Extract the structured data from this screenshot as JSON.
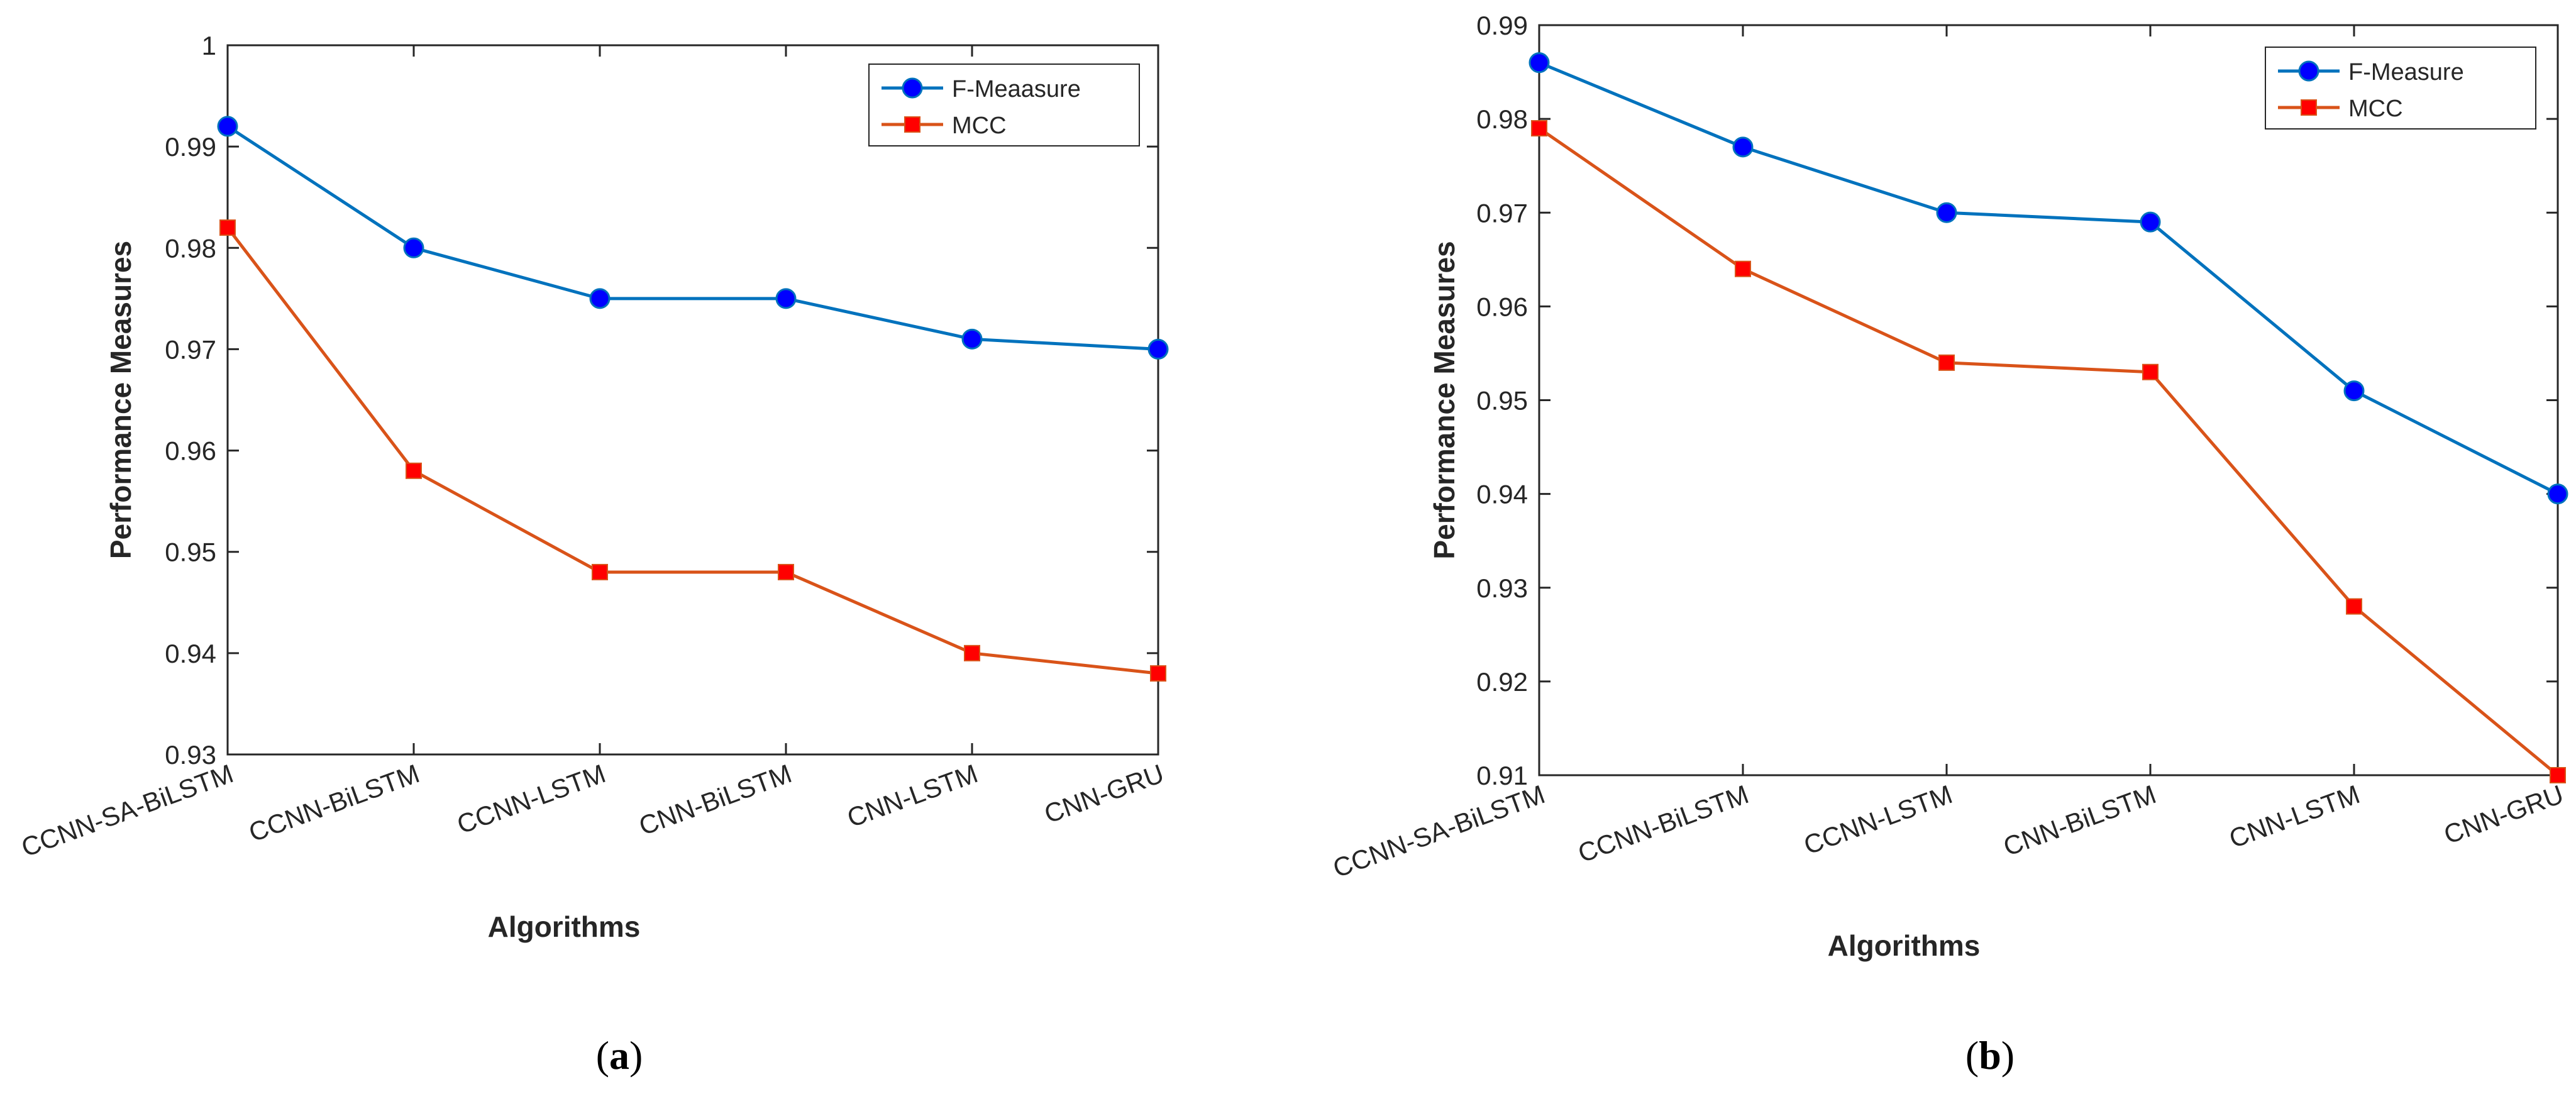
{
  "chart_data": [
    {
      "type": "line",
      "panel_label": "a",
      "title": "",
      "xlabel": "Algorithms",
      "ylabel": "Performance Measures",
      "categories": [
        "CCNN-SA-BiLSTM",
        "CCNN-BiLSTM",
        "CCNN-LSTM",
        "CNN-BiLSTM",
        "CNN-LSTM",
        "CNN-GRU"
      ],
      "ylim": [
        0.93,
        1.0
      ],
      "yticks": [
        "0.93",
        "0.94",
        "0.95",
        "0.96",
        "0.97",
        "0.98",
        "0.99",
        "1"
      ],
      "grid": false,
      "legend_position": "top-right",
      "series": [
        {
          "name": "F-Meaasure",
          "color": "#0072BD",
          "marker": "circle",
          "marker_color": "#0000FF",
          "values": [
            0.992,
            0.98,
            0.975,
            0.975,
            0.971,
            0.97
          ]
        },
        {
          "name": "MCC",
          "color": "#D95319",
          "marker": "square",
          "marker_color": "#FF0000",
          "values": [
            0.982,
            0.958,
            0.948,
            0.948,
            0.94,
            0.938
          ]
        }
      ]
    },
    {
      "type": "line",
      "panel_label": "b",
      "title": "",
      "xlabel": "Algorithms",
      "ylabel": "Performance Measures",
      "categories": [
        "CCNN-SA-BiLSTM",
        "CCNN-BiLSTM",
        "CCNN-LSTM",
        "CNN-BiLSTM",
        "CNN-LSTM",
        "CNN-GRU"
      ],
      "ylim": [
        0.91,
        0.99
      ],
      "yticks": [
        "0.91",
        "0.92",
        "0.93",
        "0.94",
        "0.95",
        "0.96",
        "0.97",
        "0.98",
        "0.99"
      ],
      "grid": false,
      "legend_position": "top-right",
      "series": [
        {
          "name": "F-Measure",
          "color": "#0072BD",
          "marker": "circle",
          "marker_color": "#0000FF",
          "values": [
            0.986,
            0.977,
            0.97,
            0.969,
            0.951,
            0.94
          ]
        },
        {
          "name": "MCC",
          "color": "#D95319",
          "marker": "square",
          "marker_color": "#FF0000",
          "values": [
            0.979,
            0.964,
            0.954,
            0.953,
            0.928,
            0.91
          ]
        }
      ]
    }
  ]
}
